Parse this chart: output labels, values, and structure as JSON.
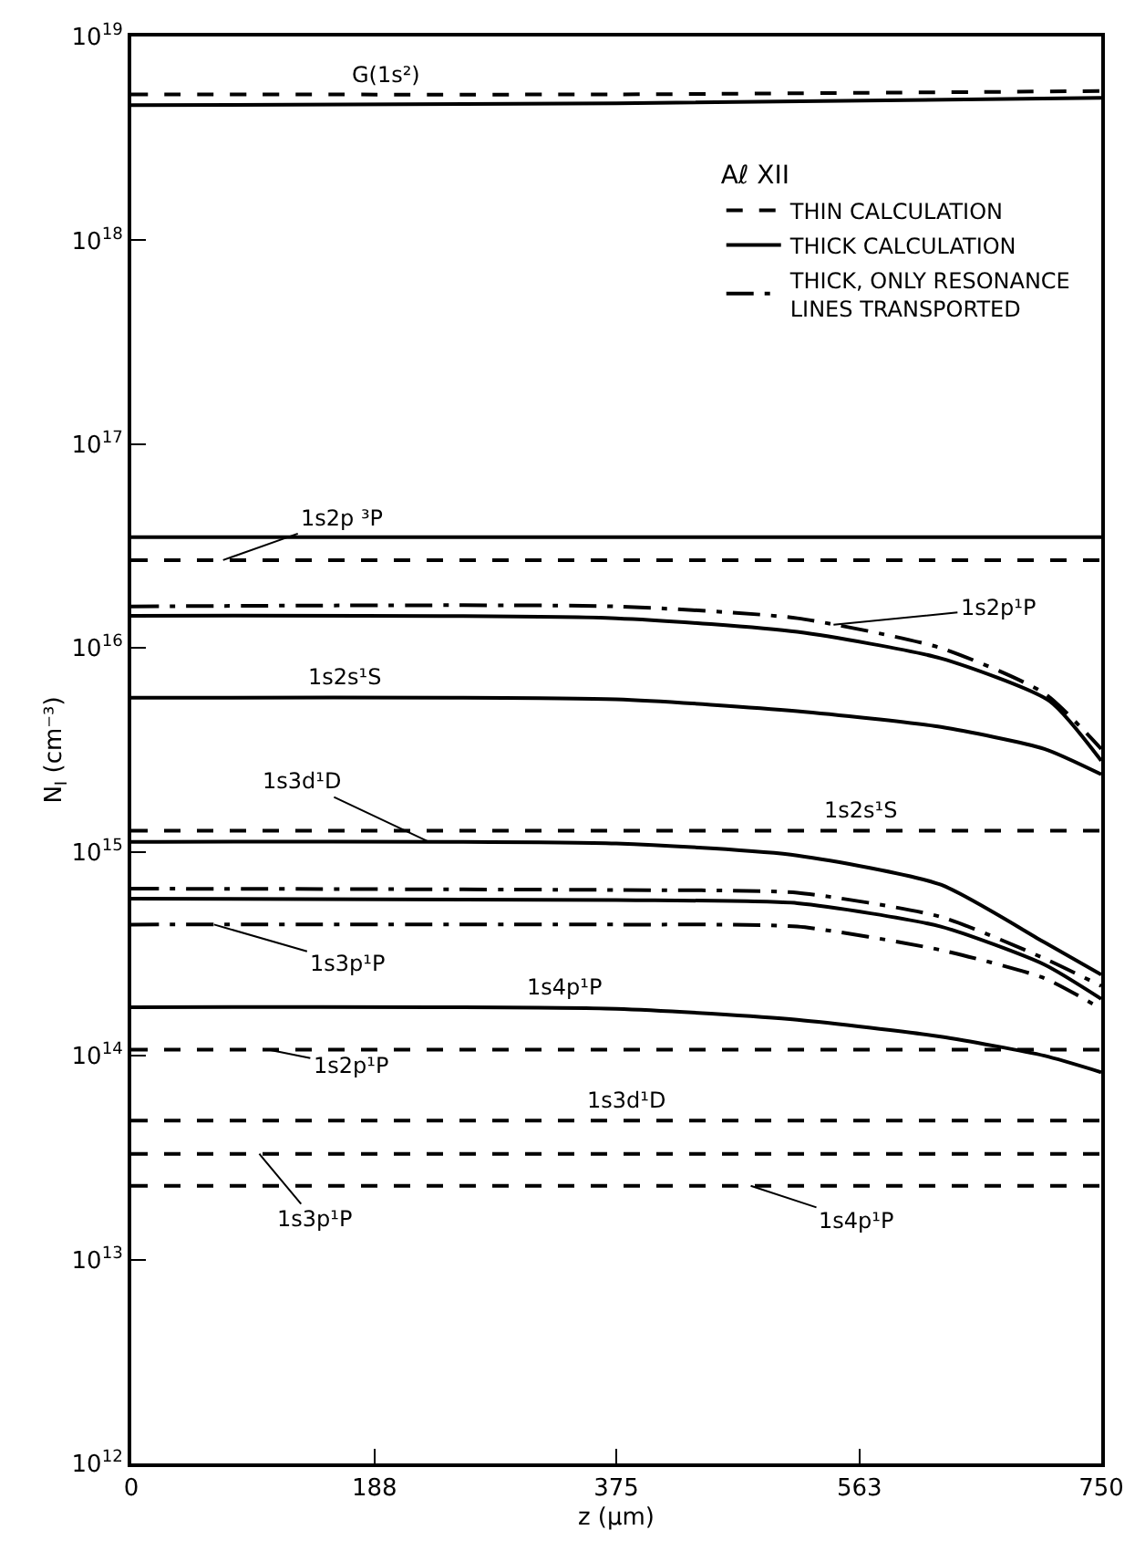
{
  "chart_data": {
    "type": "line",
    "xlabel": "z (μm)",
    "ylabel": "N$_{I}$ (cm⁻³)",
    "legend_title": "Aℓ XII",
    "log": "y",
    "legend": "top right",
    "marker": "none",
    "xlim": [
      0,
      750
    ],
    "xticks": [
      0,
      188,
      375,
      563,
      750
    ],
    "ylim": [
      1000000000000.0,
      1e+19
    ],
    "yticks": [
      {
        "value": 1000000000000.0,
        "label": "10$^{12}$"
      },
      {
        "value": 10000000000000.0,
        "label": "10$^{13}$"
      },
      {
        "value": 100000000000000.0,
        "label": "10$^{14}$"
      },
      {
        "value": 1000000000000000.0,
        "label": "10$^{15}$"
      },
      {
        "value": 1e+16,
        "label": "10$^{16}$"
      },
      {
        "value": 1e+17,
        "label": "10$^{17}$"
      },
      {
        "value": 1e+18,
        "label": "10$^{18}$"
      },
      {
        "value": 1e+19,
        "label": "10$^{19}$"
      }
    ],
    "series": [
      {
        "name": "THIN CALCULATION",
        "color": "#000000",
        "line_style": "dashed",
        "x": [
          0,
          375,
          750
        ],
        "values": [
          5.2e+18,
          5.2e+18,
          5.4e+18
        ]
      },
      {
        "name": "THICK CALCULATION",
        "color": "#000000",
        "line_style": "solid",
        "x": [
          0,
          375,
          750
        ],
        "values": [
          4.6e+18,
          4.7e+18,
          5e+18
        ]
      },
      {
        "name": "THICK, ONLY RESONANCE\nLINES TRANSPORTED",
        "color": "#000000",
        "line_style": "dashdot",
        "x": [
          0,
          375,
          515,
          626,
          706,
          750
        ],
        "values": [
          1.6e+16,
          1.6e+16,
          1.4e+16,
          1e+16,
          6000000000000000.0,
          3200000000000000.0
        ]
      },
      {
        "color": "#000000",
        "line_style": "solid",
        "x": [
          0,
          375,
          515,
          626,
          710,
          750
        ],
        "values": [
          1.44e+16,
          1.4e+16,
          1.2e+16,
          8900000000000000.0,
          5500000000000000.0,
          2800000000000000.0
        ]
      },
      {
        "color": "#000000",
        "line_style": "solid",
        "x": [
          0,
          750
        ],
        "values": [
          3.5e+16,
          3.5e+16
        ]
      },
      {
        "color": "#000000",
        "line_style": "dashed",
        "x": [
          0,
          750
        ],
        "values": [
          2.7e+16,
          2.7e+16
        ]
      },
      {
        "color": "#000000",
        "line_style": "solid",
        "x": [
          0,
          375,
          515,
          626,
          706,
          750
        ],
        "values": [
          5700000000000000.0,
          5600000000000000.0,
          4900000000000000.0,
          4100000000000000.0,
          3200000000000000.0,
          2400000000000000.0
        ]
      },
      {
        "color": "#000000",
        "line_style": "dashed",
        "x": [
          0,
          750
        ],
        "values": [
          1270000000000000.0,
          1270000000000000.0
        ]
      },
      {
        "color": "#000000",
        "line_style": "solid",
        "x": [
          0,
          375,
          515,
          626,
          706,
          750
        ],
        "values": [
          1120000000000000.0,
          1100000000000000.0,
          960000000000000.0,
          690000000000000.0,
          360000000000000.0,
          250000000000000.0
        ]
      },
      {
        "color": "#000000",
        "line_style": "dashdot",
        "x": [
          0,
          375,
          515,
          626,
          706,
          750
        ],
        "values": [
          660000000000000.0,
          650000000000000.0,
          630000000000000.0,
          480000000000000.0,
          300000000000000.0,
          220000000000000.0
        ]
      },
      {
        "color": "#000000",
        "line_style": "solid",
        "x": [
          0,
          375,
          515,
          626,
          706,
          750
        ],
        "values": [
          590000000000000.0,
          580000000000000.0,
          560000000000000.0,
          430000000000000.0,
          280000000000000.0,
          190000000000000.0
        ]
      },
      {
        "color": "#000000",
        "line_style": "dashdot",
        "x": [
          0,
          375,
          515,
          626,
          706,
          750
        ],
        "values": [
          440000000000000.0,
          440000000000000.0,
          430000000000000.0,
          330000000000000.0,
          240000000000000.0,
          170000000000000.0
        ]
      },
      {
        "color": "#000000",
        "line_style": "solid",
        "x": [
          0,
          375,
          515,
          626,
          706,
          750
        ],
        "values": [
          173000000000000.0,
          170000000000000.0,
          150000000000000.0,
          124000000000000.0,
          100000000000000.0,
          83000000000000.0
        ]
      },
      {
        "color": "#000000",
        "line_style": "dashed",
        "x": [
          0,
          750
        ],
        "values": [
          107000000000000.0,
          107000000000000.0
        ]
      },
      {
        "color": "#000000",
        "line_style": "dashed",
        "x": [
          0,
          750
        ],
        "values": [
          48000000000000.0,
          48000000000000.0
        ]
      },
      {
        "color": "#000000",
        "line_style": "dashed",
        "x": [
          0,
          750
        ],
        "values": [
          33000000000000.0,
          33000000000000.0
        ]
      },
      {
        "color": "#000000",
        "line_style": "dashed",
        "x": [
          0,
          750
        ],
        "values": [
          23000000000000.0,
          23000000000000.0
        ]
      }
    ],
    "annotations": [
      {
        "text": "G(1s²)",
        "x": 196,
        "y": 5.2e+18
      },
      {
        "text": "1s2p ³P",
        "x": 71,
        "y": 2.7e+16
      },
      {
        "text": "1s2p¹P",
        "x": 543,
        "y": 1.3e+16
      },
      {
        "text": "1s2s¹S",
        "x": 165,
        "y": 5700000000000000.0
      },
      {
        "text": "1s3d¹D",
        "x": 230,
        "y": 1120000000000000.0
      },
      {
        "text": "1s2s¹S",
        "x": 564,
        "y": 1270000000000000.0
      },
      {
        "text": "1s3p¹P",
        "x": 64,
        "y": 440000000000000.0
      },
      {
        "text": "1s4p¹P",
        "x": 335,
        "y": 173000000000000.0
      },
      {
        "text": "1s2p¹P",
        "x": 106,
        "y": 107000000000000.0
      },
      {
        "text": "1s3d¹D",
        "x": 383,
        "y": 48000000000000.0
      },
      {
        "text": "1s3p¹P",
        "x": 99,
        "y": 33000000000000.0
      },
      {
        "text": "1s4p¹P",
        "x": 479,
        "y": 23000000000000.0
      }
    ]
  }
}
